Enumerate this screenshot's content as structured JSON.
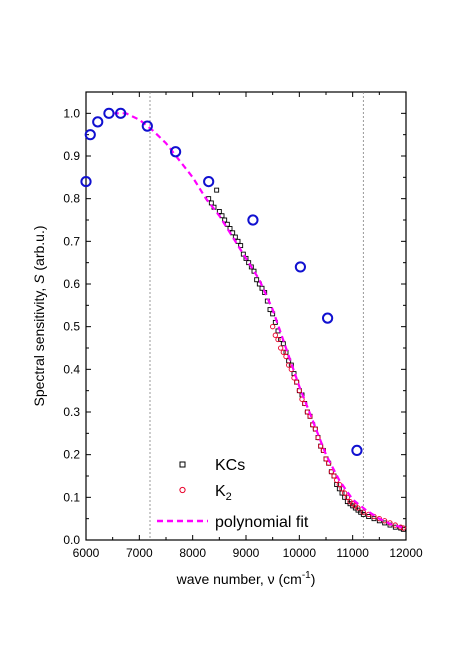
{
  "chart_data": {
    "type": "scatter",
    "xlabel": "wave number, ν (cm",
    "xlabel_sup": "-1",
    "xlabel_end": ")",
    "ylabel": "Spectral sensitivity, ",
    "ylabel_var": "S",
    "ylabel_end": " (arb.u.)",
    "xlim": [
      6000,
      12000
    ],
    "ylim": [
      0.0,
      1.05
    ],
    "x_ticks": [
      6000,
      7000,
      8000,
      9000,
      10000,
      11000,
      12000
    ],
    "x_tick_labels": [
      "6000",
      "7000",
      "8000",
      "9000",
      "10000",
      "11000",
      "12000"
    ],
    "y_ticks": [
      0.0,
      0.1,
      0.2,
      0.3,
      0.4,
      0.5,
      0.6,
      0.7,
      0.8,
      0.9,
      1.0
    ],
    "y_tick_labels": [
      "0.0",
      "0.1",
      "0.2",
      "0.3",
      "0.4",
      "0.5",
      "0.6",
      "0.7",
      "0.8",
      "0.9",
      "1.0"
    ],
    "grid": false,
    "vertical_reference_lines": [
      7200,
      11200
    ],
    "legend_position": "bottom-center",
    "colors": {
      "kcs": "#000000",
      "k2": "#e8002a",
      "fit": "#ff00ff",
      "circles": "#1010d0",
      "refline": "#808080"
    },
    "series": [
      {
        "name": "KCs",
        "marker": "open-square",
        "x": [
          8300,
          8350,
          8400,
          8450,
          8500,
          8550,
          8600,
          8650,
          8700,
          8750,
          8800,
          8850,
          8900,
          8950,
          9000,
          9050,
          9100,
          9150,
          9200,
          9250,
          9300,
          9350,
          9400,
          9450,
          9500,
          9550,
          9600,
          9650,
          9700,
          9750,
          9800,
          9850,
          9900,
          9950,
          10000,
          10050,
          10100,
          10150,
          10200,
          10250,
          10300,
          10350,
          10400,
          10450,
          10500,
          10550,
          10600,
          10650,
          10700,
          10750,
          10800,
          10850,
          10900,
          10950,
          11000,
          11050,
          11100,
          11150,
          11200,
          11300,
          11400,
          11500,
          11600,
          11700,
          11800,
          11900,
          11950
        ],
        "y": [
          0.8,
          0.79,
          0.78,
          0.82,
          0.77,
          0.76,
          0.75,
          0.74,
          0.73,
          0.72,
          0.71,
          0.7,
          0.69,
          0.67,
          0.66,
          0.65,
          0.64,
          0.63,
          0.61,
          0.6,
          0.59,
          0.58,
          0.56,
          0.54,
          0.53,
          0.51,
          0.49,
          0.47,
          0.46,
          0.44,
          0.42,
          0.41,
          0.39,
          0.37,
          0.35,
          0.34,
          0.32,
          0.3,
          0.29,
          0.27,
          0.26,
          0.24,
          0.22,
          0.21,
          0.19,
          0.18,
          0.16,
          0.15,
          0.13,
          0.12,
          0.11,
          0.1,
          0.09,
          0.085,
          0.08,
          0.075,
          0.07,
          0.065,
          0.06,
          0.055,
          0.05,
          0.045,
          0.04,
          0.035,
          0.03,
          0.028,
          0.025
        ]
      },
      {
        "name": "K",
        "name_sub": "2",
        "marker": "open-circle-small",
        "x": [
          9500,
          9550,
          9600,
          9650,
          9700,
          9750,
          9800,
          9850,
          9900,
          9950,
          10000,
          10050,
          10100,
          10150,
          10200,
          10250,
          10300,
          10350,
          10400,
          10450,
          10500,
          10550,
          10600,
          10650,
          10700,
          10750,
          10800,
          10850,
          10900,
          10950,
          11000,
          11050,
          11100,
          11200,
          11300,
          11400,
          11500,
          11600,
          11700,
          11800,
          11900,
          11950
        ],
        "y": [
          0.5,
          0.48,
          0.47,
          0.45,
          0.44,
          0.43,
          0.41,
          0.4,
          0.38,
          0.37,
          0.35,
          0.33,
          0.32,
          0.3,
          0.29,
          0.27,
          0.26,
          0.24,
          0.22,
          0.21,
          0.19,
          0.18,
          0.16,
          0.15,
          0.14,
          0.13,
          0.12,
          0.11,
          0.1,
          0.09,
          0.085,
          0.08,
          0.075,
          0.065,
          0.06,
          0.055,
          0.05,
          0.045,
          0.04,
          0.035,
          0.03,
          0.028
        ]
      },
      {
        "name": "polynomial fit",
        "line": "dashed",
        "x": [
          6500,
          6750,
          7000,
          7250,
          7500,
          7750,
          8000,
          8250,
          8500,
          8750,
          9000,
          9250,
          9500,
          9750,
          10000,
          10250,
          10500,
          10750,
          11000,
          11250,
          11500,
          11750,
          12000
        ],
        "y": [
          1.0,
          1.0,
          0.985,
          0.96,
          0.93,
          0.89,
          0.85,
          0.8,
          0.76,
          0.71,
          0.66,
          0.61,
          0.54,
          0.45,
          0.36,
          0.28,
          0.2,
          0.14,
          0.095,
          0.07,
          0.05,
          0.035,
          0.028
        ]
      },
      {
        "marker": "open-circle-large",
        "x": [
          6000,
          6080,
          6220,
          6430,
          6650,
          7150,
          7680,
          8300,
          9130,
          10020,
          10530,
          11080
        ],
        "y": [
          0.84,
          0.95,
          0.98,
          1.0,
          1.0,
          0.97,
          0.91,
          0.84,
          0.75,
          0.64,
          0.52,
          0.21
        ]
      }
    ]
  }
}
